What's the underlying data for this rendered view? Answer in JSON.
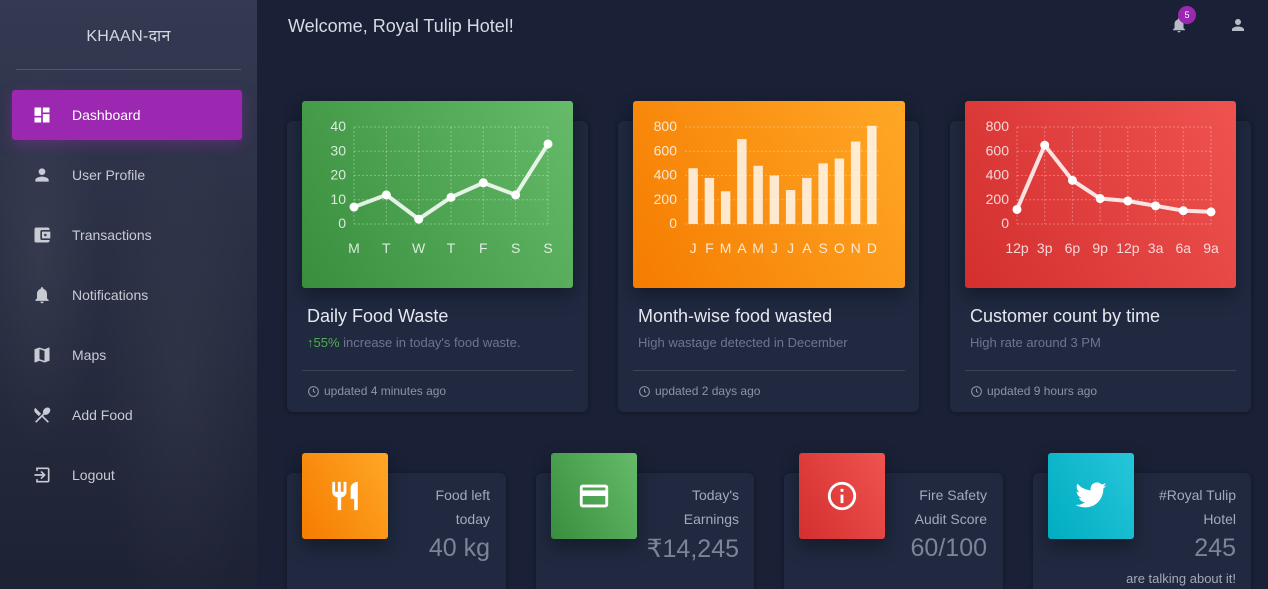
{
  "brand": "KHAAN-दान",
  "header": {
    "welcome": "Welcome, Royal Tulip Hotel!",
    "notification_count": "5"
  },
  "sidebar": {
    "items": [
      {
        "label": "Dashboard",
        "icon": "dashboard-icon",
        "active": true
      },
      {
        "label": "User Profile",
        "icon": "person-icon"
      },
      {
        "label": "Transactions",
        "icon": "wallet-icon"
      },
      {
        "label": "Notifications",
        "icon": "bell-icon"
      },
      {
        "label": "Maps",
        "icon": "map-icon"
      },
      {
        "label": "Add Food",
        "icon": "utensils-icon"
      },
      {
        "label": "Logout",
        "icon": "logout-icon"
      }
    ]
  },
  "cards": [
    {
      "title": "Daily Food Waste",
      "highlight": "55%",
      "subtitle": " increase in today's food waste.",
      "footer": "updated 4 minutes ago",
      "color": "#43a047"
    },
    {
      "title": "Month-wise food wasted",
      "subtitle": "High wastage detected in December",
      "footer": "updated 2 days ago",
      "color": "#fb8c00"
    },
    {
      "title": "Customer count by time",
      "subtitle": "High rate around 3 PM",
      "footer": "updated 9 hours ago",
      "color": "#e53935"
    }
  ],
  "stats": [
    {
      "label1": "Food left",
      "label2": "today",
      "value": "40 kg",
      "icon": "restaurant-icon",
      "color": "#fb8c00"
    },
    {
      "label1": "Today's",
      "label2": "Earnings",
      "value": "₹14,245",
      "icon": "credit-card-icon",
      "color": "#43a047"
    },
    {
      "label1": "Fire Safety",
      "label2": "Audit Score",
      "value": "60/100",
      "icon": "info-icon",
      "color": "#e53935"
    },
    {
      "label1": "#Royal Tulip",
      "label2": "Hotel",
      "value": "245",
      "extra": "are talking about it!",
      "icon": "twitter-icon",
      "color": "#00acc1"
    }
  ],
  "chart_data": [
    {
      "type": "line",
      "categories": [
        "M",
        "T",
        "W",
        "T",
        "F",
        "S",
        "S"
      ],
      "values": [
        7,
        12,
        2,
        11,
        17,
        12,
        33
      ],
      "yticks": [
        "0",
        "10",
        "20",
        "30",
        "40"
      ],
      "ylim": [
        0,
        40
      ],
      "grid": true
    },
    {
      "type": "bar",
      "categories": [
        "J",
        "F",
        "M",
        "A",
        "M",
        "J",
        "J",
        "A",
        "S",
        "O",
        "N",
        "D"
      ],
      "values": [
        460,
        380,
        270,
        700,
        480,
        400,
        280,
        380,
        500,
        540,
        680,
        810
      ],
      "yticks": [
        "0",
        "200",
        "400",
        "600",
        "800"
      ],
      "ylim": [
        0,
        800
      ],
      "grid": true
    },
    {
      "type": "line",
      "categories": [
        "12p",
        "3p",
        "6p",
        "9p",
        "12p",
        "3a",
        "6a",
        "9a"
      ],
      "values": [
        120,
        650,
        360,
        210,
        190,
        150,
        110,
        100
      ],
      "yticks": [
        "0",
        "200",
        "400",
        "600",
        "800"
      ],
      "ylim": [
        0,
        800
      ],
      "grid": true
    }
  ]
}
